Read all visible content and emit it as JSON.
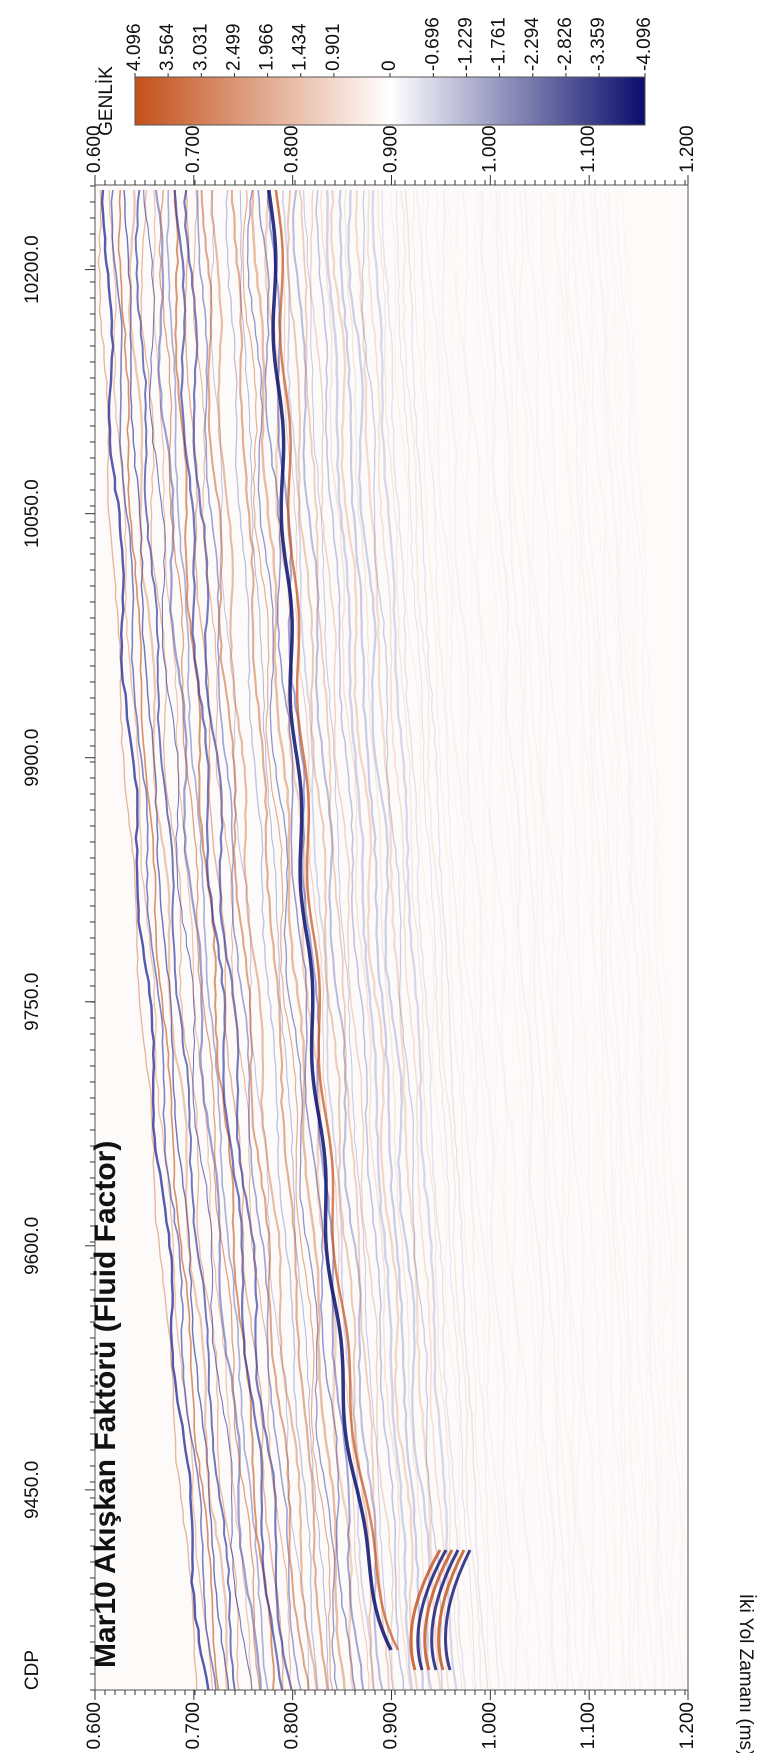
{
  "chart_data": {
    "type": "seismic",
    "title": "Mar10 Akışkan Faktörü (Fluid Factor)",
    "x_label": "CDP",
    "y_label": "İki Yol Zamanı (ms)",
    "xlim": [
      9327,
      10252
    ],
    "xticks": [
      {
        "value": 9450,
        "label": "9450.0"
      },
      {
        "value": 9600,
        "label": "9600.0"
      },
      {
        "value": 9750,
        "label": "9750.0"
      },
      {
        "value": 9900,
        "label": "9900.0"
      },
      {
        "value": 10050,
        "label": "10050.0"
      },
      {
        "value": 10200,
        "label": "10200.0"
      }
    ],
    "ylim": [
      0.6,
      1.2
    ],
    "yticks": [
      {
        "value": 0.6,
        "label": "0.600"
      },
      {
        "value": 0.7,
        "label": "0.700"
      },
      {
        "value": 0.8,
        "label": "0.800"
      },
      {
        "value": 0.9,
        "label": "0.900"
      },
      {
        "value": 1.0,
        "label": "1.000"
      },
      {
        "value": 1.1,
        "label": "1.100"
      },
      {
        "value": 1.2,
        "label": "1.200"
      }
    ],
    "colorbar": {
      "label": "GENLİK",
      "lim": [
        4.096,
        -4.096
      ],
      "ticks": [
        4.096,
        3.564,
        3.031,
        2.499,
        1.966,
        1.434,
        0.901,
        0,
        -0.696,
        -1.229,
        -1.761,
        -2.294,
        -2.826,
        -3.359,
        -4.096
      ],
      "colors": [
        "#c4501a",
        "#ffffff",
        "#0a0d6b"
      ]
    }
  }
}
